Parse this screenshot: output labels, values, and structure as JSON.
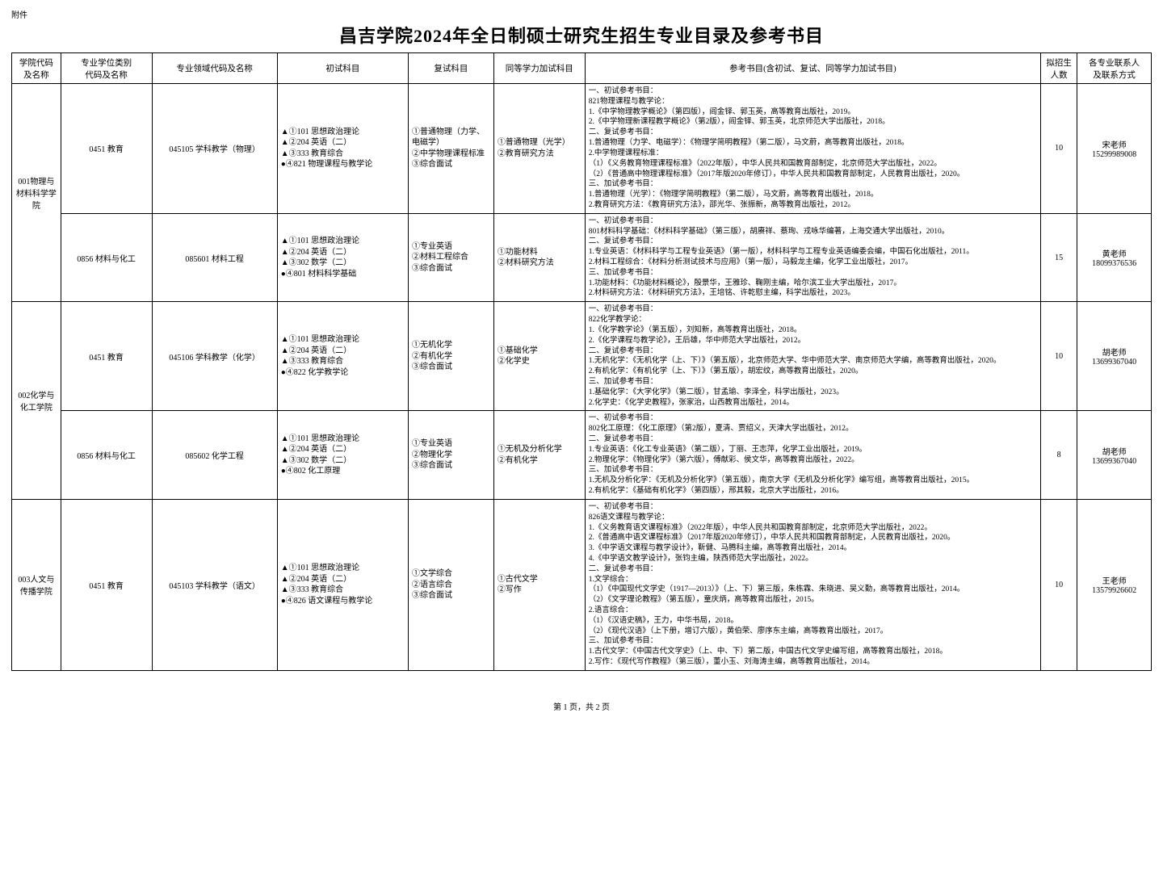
{
  "attachment_label": "附件",
  "title": "昌吉学院2024年全日制硕士研究生招生专业目录及参考书目",
  "headers": {
    "college": "学院代码\n及名称",
    "degree": "专业学位类别\n代码及名称",
    "field": "专业领域代码及名称",
    "subjects": "初试科目",
    "retest_subjects": "复试科目",
    "addtest_subjects": "同等学力加试科目",
    "refs": "参考书目(含初试、复试、同等学力加试书目)",
    "plan_num": "拟招生\n人数",
    "contact": "各专业联系人\n及联系方式"
  },
  "rows": [
    {
      "college": "001物理与材料科学学院",
      "college_rowspan": 2,
      "degree": "0451 教育",
      "field": "045105 学科教学（物理）",
      "subjects": "▲①101 思想政治理论\n▲②204 英语（二）\n▲③333 教育综合\n●④821 物理课程与教学论",
      "retest": "①普通物理（力学、电磁学）\n②中学物理课程标准\n③综合面试",
      "addtest": "①普通物理（光学）\n②教育研究方法",
      "refs": "一、初试参考书目：\n821物理课程与教学论：\n1.《中学物理教学概论》（第四版），阎金铎、郭玉英，高等教育出版社，2019。\n2.《中学物理新课程教学概论》（第2版），阎金铎、郭玉英，北京师范大学出版社，2018。\n二、复试参考书目：\n1.普通物理（力学、电磁学）：《物理学简明教程》（第二版），马文蔚，高等教育出版社，2018。\n2.中学物理课程标准：\n（1）《义务教育物理课程标准》（2022年版），中华人民共和国教育部制定，北京师范大学出版社，2022。\n（2）《普通高中物理课程标准》（2017年版2020年修订），中华人民共和国教育部制定，人民教育出版社，2020。\n三、加试参考书目：\n1.普通物理（光学）：《物理学简明教程》（第二版），马文蔚，高等教育出版社，2018。\n2.教育研究方法：《教育研究方法》，邵光华、张振新，高等教育出版社，2012。",
      "plan_num": "10",
      "contact": "宋老师\n15299989008"
    },
    {
      "degree": "0856 材料与化工",
      "field": "085601 材料工程",
      "subjects": "▲①101 思想政治理论\n▲②204 英语（二）\n▲③302 数学（二）\n●④801 材料科学基础",
      "retest": "①专业英语\n②材料工程综合\n③综合面试",
      "addtest": "①功能材料\n②材料研究方法",
      "refs": "一、初试参考书目：\n801材料科学基础：《材料科学基础》（第三版），胡赓祥、蔡珣、戎咏华编著，上海交通大学出版社，2010。\n二、复试参考书目：\n1.专业英语：《材料科学与工程专业英语》（第一版），材料科学与工程专业英语编委会编，中国石化出版社，2011。\n2.材料工程综合：《材料分析测试技术与应用》（第一版），马毅龙主编，化学工业出版社，2017。\n三、加试参考书目：\n1.功能材料：《功能材料概论》，殷景华，王雅珍、鞠刚主编，哈尔滨工业大学出版社，2017。\n2.材料研究方法：《材料研究方法》，王培铭、许乾慰主编，科学出版社，2023。",
      "plan_num": "15",
      "contact": "黄老师\n18099376536"
    },
    {
      "college": "002化学与化工学院",
      "college_rowspan": 2,
      "degree": "0451 教育",
      "field": "045106 学科教学（化学）",
      "subjects": "▲①101 思想政治理论\n▲②204 英语（二）\n▲③333 教育综合\n●④822 化学教学论",
      "retest": "①无机化学\n②有机化学\n③综合面试",
      "addtest": "①基础化学\n②化学史",
      "refs": "一、初试参考书目：\n822化学教学论：\n1.《化学教学论》（第五版），刘知新，高等教育出版社，2018。\n2.《化学课程与教学论》，王后雄，华中师范大学出版社，2012。\n二、复试参考书目：\n1.无机化学：《无机化学（上、下）》（第五版），北京师范大学、华中师范大学、南京师范大学编，高等教育出版社，2020。\n2.有机化学：《有机化学（上、下）》（第五版），胡宏纹，高等教育出版社，2020。\n三、加试参考书目：\n1.基础化学：《大学化学》（第二版），甘孟瑜、李泽全，科学出版社，2023。\n2.化学史：《化学史教程》，张家治，山西教育出版社，2014。",
      "plan_num": "10",
      "contact": "胡老师\n13699367040"
    },
    {
      "degree": "0856 材料与化工",
      "field": "085602 化学工程",
      "subjects": "▲①101 思想政治理论\n▲②204 英语（二）\n▲③302 数学（二）\n●④802 化工原理",
      "retest": "①专业英语\n②物理化学\n③综合面试",
      "addtest": "①无机及分析化学\n②有机化学",
      "refs": "一、初试参考书目：\n802化工原理：《化工原理》（第2版），夏清、贾绍义，天津大学出版社，2012。\n二、复试参考书目：\n1.专业英语：《化工专业英语》（第二版），丁丽、王志萍，化学工业出版社，2019。\n2.物理化学：《物理化学》（第六版），傅献彩、侯文华，高等教育出版社，2022。\n三、加试参考书目：\n1.无机及分析化学：《无机及分析化学》（第五版），南京大学《无机及分析化学》编写组，高等教育出版社，2015。\n2.有机化学：《基础有机化学》（第四版），邢其毅，北京大学出版社，2016。",
      "plan_num": "8",
      "contact": "胡老师\n13699367040"
    },
    {
      "college": "003人文与传播学院",
      "college_rowspan": 1,
      "degree": "0451 教育",
      "field": "045103 学科教学（语文）",
      "subjects": "▲①101 思想政治理论\n▲②204 英语（二）\n▲③333 教育综合\n●④826 语文课程与教学论",
      "retest": "①文学综合\n②语言综合\n③综合面试",
      "addtest": "①古代文学\n②写作",
      "refs": "一、初试参考书目：\n826语文课程与教学论：\n1.《义务教育语文课程标准》（2022年版），中华人民共和国教育部制定，北京师范大学出版社，2022。\n2.《普通高中语文课程标准》（2017年版2020年修订），中华人民共和国教育部制定，人民教育出版社，2020。\n3.《中学语文课程与教学设计》，靳健、马腾科主编，高等教育出版社，2014。\n4.《中学语文教学设计》，张钧主编，陕西师范大学出版社，2022。\n二、复试参考书目：\n1.文学综合：\n（1）《中国现代文学史（1917—2013）》（上、下）第三版，朱栋霖、朱晓进、吴义勤，高等教育出版社，2014。\n（2）《文学理论教程》（第五版），童庆炳，高等教育出版社，2015。\n2.语言综合：\n（1）《汉语史稿》，王力，中华书局，2018。\n（2）《现代汉语》（上下册，增订六版），黄伯荣、廖序东主编，高等教育出版社，2017。\n三、加试参考书目：\n1.古代文学：《中国古代文学史》（上、中、下）第二版，中国古代文学史编写组，高等教育出版社，2018。\n2.写作：《现代写作教程》（第三版），董小玉、刘海涛主编，高等教育出版社，2014。",
      "plan_num": "10",
      "contact": "王老师\n13579926602"
    }
  ],
  "footer": "第 1 页，共 2 页"
}
